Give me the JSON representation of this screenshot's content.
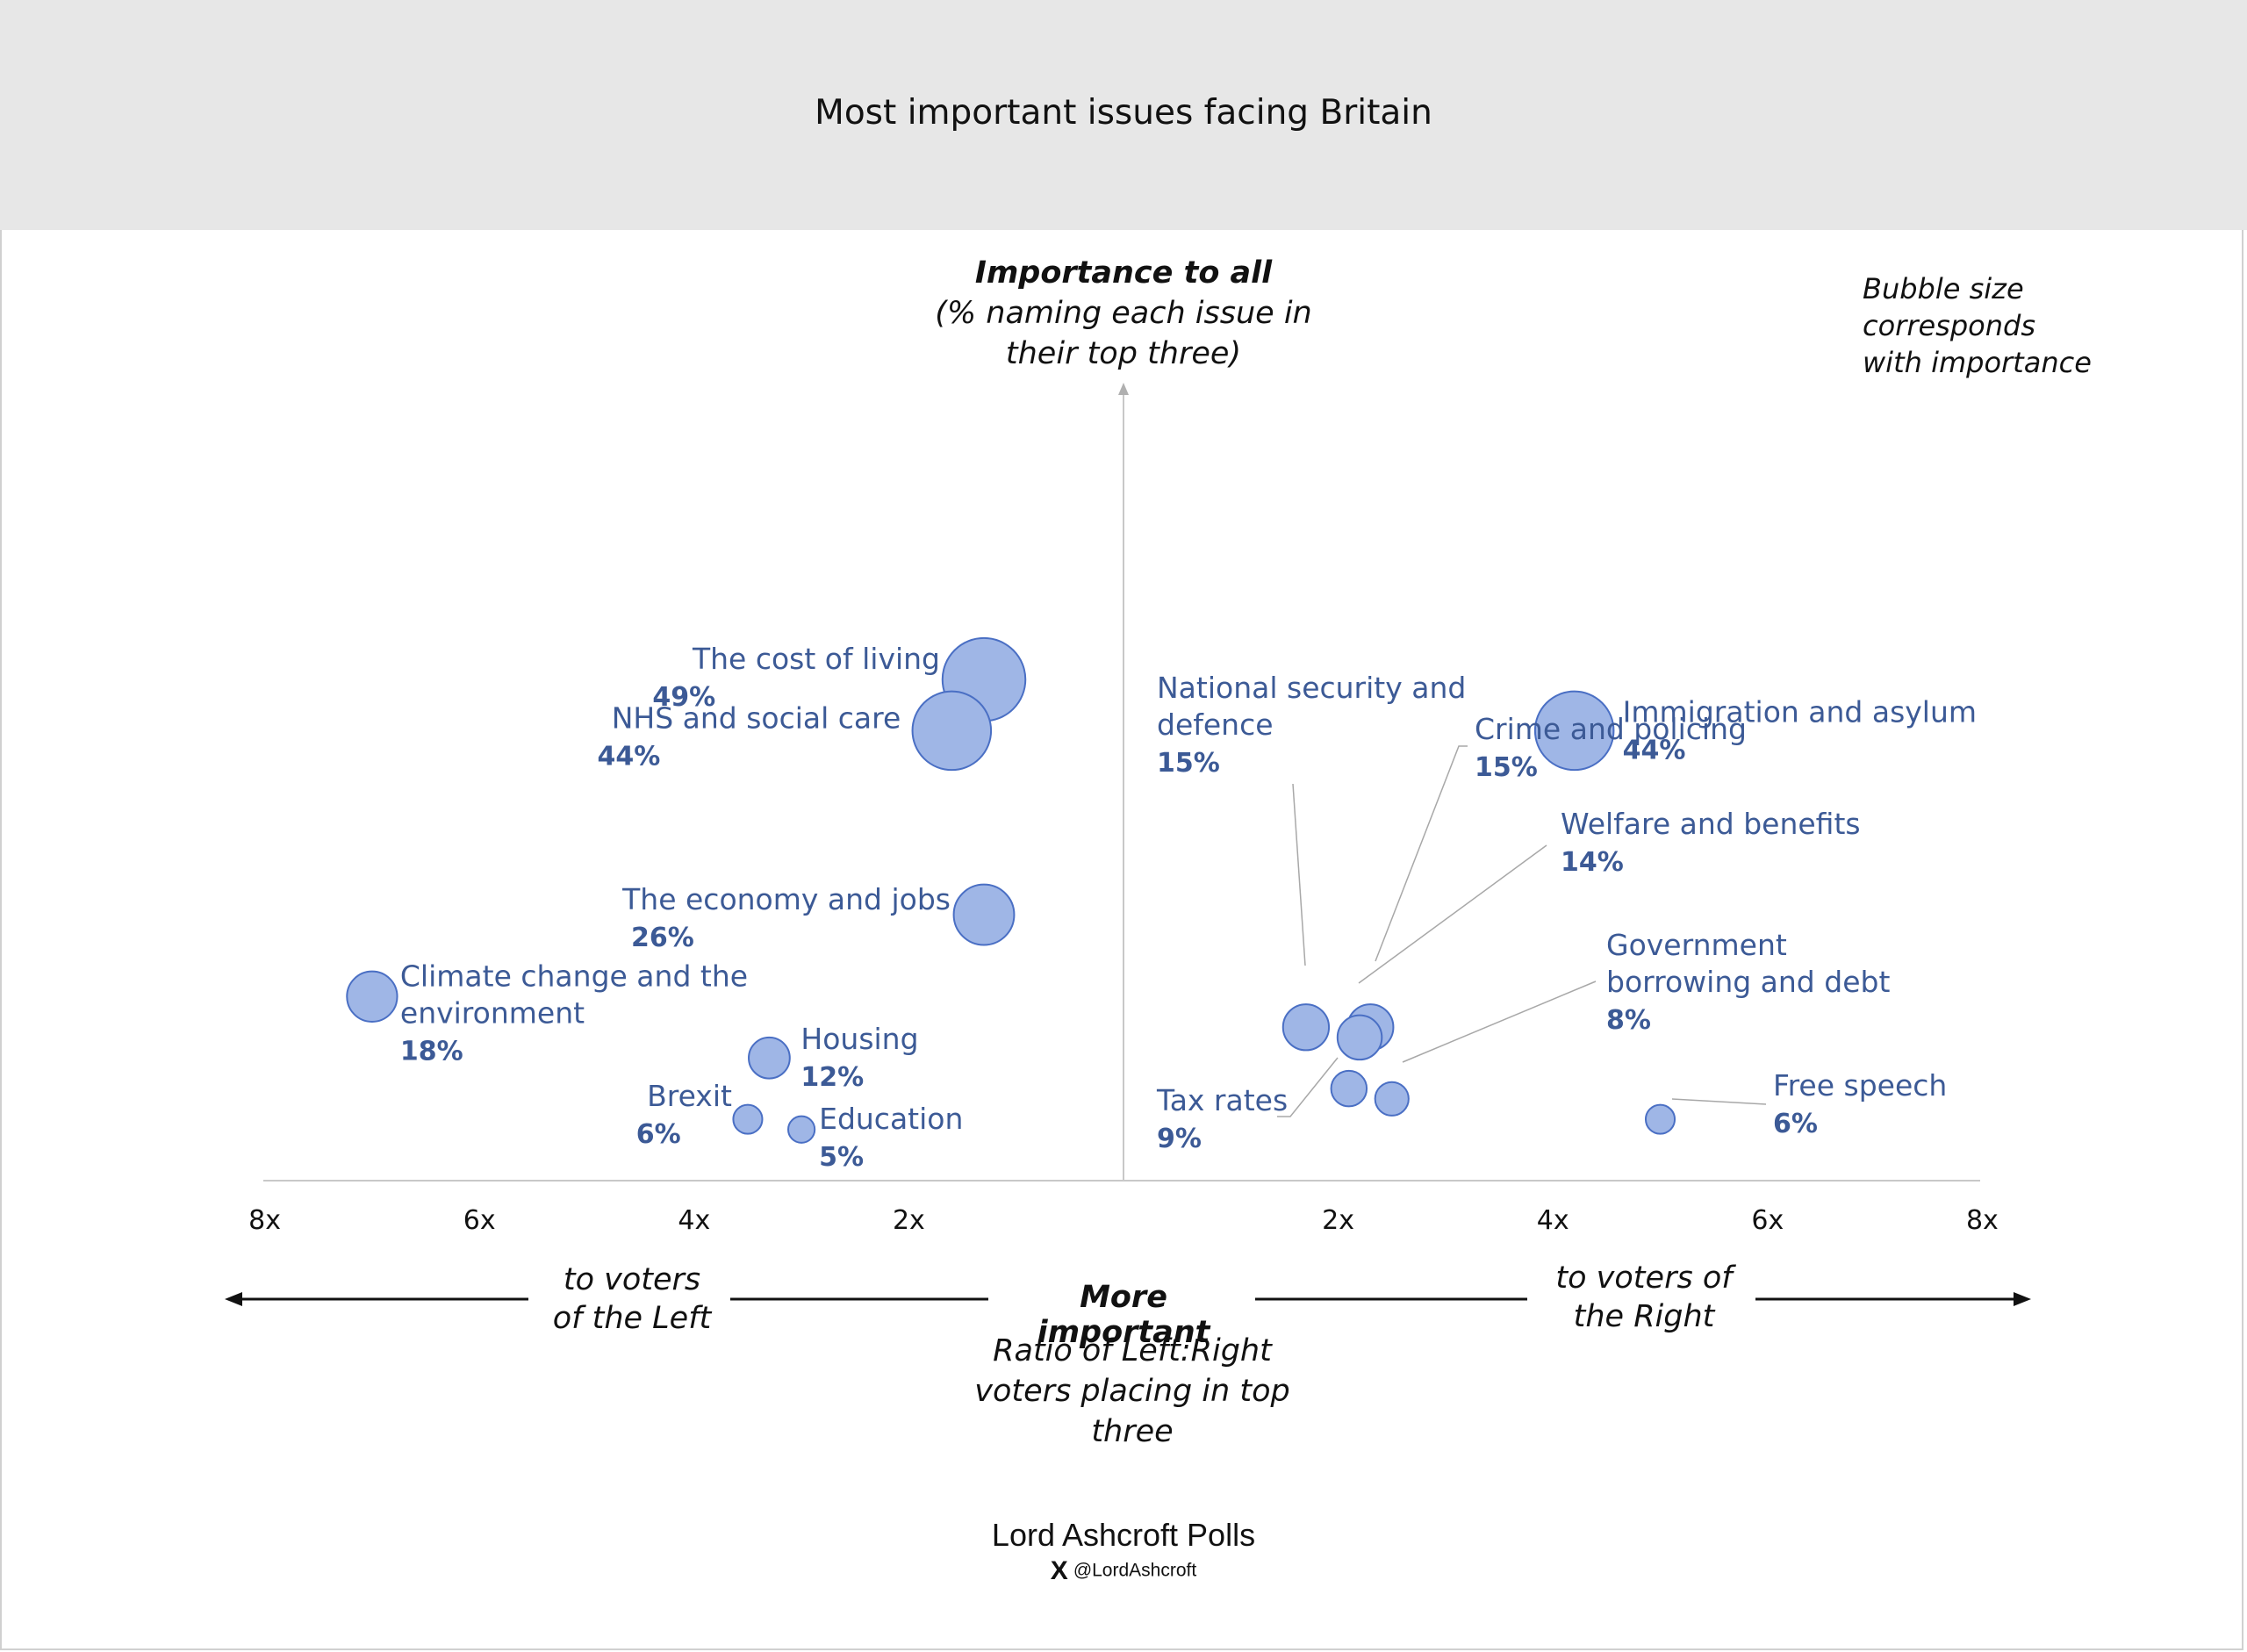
{
  "page": {
    "title": "Most important issues facing Britain"
  },
  "y_axis_label": {
    "bold": "Importance to all",
    "line1": "(% naming each issue in",
    "line2": "their top three)"
  },
  "note": {
    "line1": "Bubble size corresponds",
    "line2": "with importance"
  },
  "direction": {
    "left_line1": "to voters",
    "left_line2": "of the Left",
    "right_line1": "to voters of",
    "right_line2": "the Right",
    "center": "More important",
    "ratio_line1": "Ratio of Left:Right",
    "ratio_line2": "voters placing in top",
    "ratio_line3": "three"
  },
  "footer": {
    "source": "Lord Ashcroft Polls",
    "x_logo": "X",
    "handle": "@LordAshcroft"
  },
  "colors": {
    "bubble_fill": "#9fb6e6",
    "bubble_stroke": "#4a6fc4",
    "label": "#3c5a96",
    "axis": "#c8c8c8",
    "leader": "#a8a8a8"
  },
  "chart_data": {
    "type": "bubble",
    "title": "Most important issues facing Britain",
    "xlabel": "Ratio of Left:Right voters placing in top three",
    "ylabel": "Importance to all (% naming each issue in their top three)",
    "x_scale": "ratio, left side = more important to voters of the Left, right side = more important to voters of the Right",
    "x_ticks_left": [
      "8x",
      "6x",
      "4x",
      "2x"
    ],
    "x_ticks_right": [
      "2x",
      "4x",
      "6x",
      "8x"
    ],
    "x_tick_values_left": [
      8,
      6,
      4,
      2
    ],
    "x_tick_values_right": [
      2,
      4,
      6,
      8
    ],
    "xlim": [
      -8,
      8
    ],
    "ylim": [
      0,
      55
    ],
    "points": [
      {
        "label_lines": [
          "The cost of living"
        ],
        "value_label": "49%",
        "side": "left",
        "ratio": 1.3,
        "importance": 49
      },
      {
        "label_lines": [
          "NHS and social care"
        ],
        "value_label": "44%",
        "side": "left",
        "ratio": 1.6,
        "importance": 44
      },
      {
        "label_lines": [
          "The economy and jobs"
        ],
        "value_label": "26%",
        "side": "left",
        "ratio": 1.3,
        "importance": 26
      },
      {
        "label_lines": [
          "Climate change and the",
          "environment"
        ],
        "value_label": "18%",
        "side": "left",
        "ratio": 7.0,
        "importance": 18
      },
      {
        "label_lines": [
          "Housing"
        ],
        "value_label": "12%",
        "side": "left",
        "ratio": 3.3,
        "importance": 12
      },
      {
        "label_lines": [
          "Brexit"
        ],
        "value_label": "6%",
        "side": "left",
        "ratio": 3.5,
        "importance": 6
      },
      {
        "label_lines": [
          "Education"
        ],
        "value_label": "5%",
        "side": "left",
        "ratio": 3.0,
        "importance": 5
      },
      {
        "label_lines": [
          "Immigration and asylum"
        ],
        "value_label": "44%",
        "side": "right",
        "ratio": 4.2,
        "importance": 44
      },
      {
        "label_lines": [
          "National security and",
          "defence"
        ],
        "value_label": "15%",
        "side": "right",
        "ratio": 1.7,
        "importance": 15
      },
      {
        "label_lines": [
          "Crime and policing"
        ],
        "value_label": "15%",
        "side": "right",
        "ratio": 2.3,
        "importance": 15
      },
      {
        "label_lines": [
          "Welfare and benefits"
        ],
        "value_label": "14%",
        "side": "right",
        "ratio": 2.2,
        "importance": 14
      },
      {
        "label_lines": [
          "Government",
          "borrowing and debt"
        ],
        "value_label": "8%",
        "side": "right",
        "ratio": 2.5,
        "importance": 8
      },
      {
        "label_lines": [
          "Tax rates"
        ],
        "value_label": "9%",
        "side": "right",
        "ratio": 2.1,
        "importance": 9
      },
      {
        "label_lines": [
          "Free speech"
        ],
        "value_label": "6%",
        "side": "right",
        "ratio": 5.0,
        "importance": 6
      }
    ]
  }
}
